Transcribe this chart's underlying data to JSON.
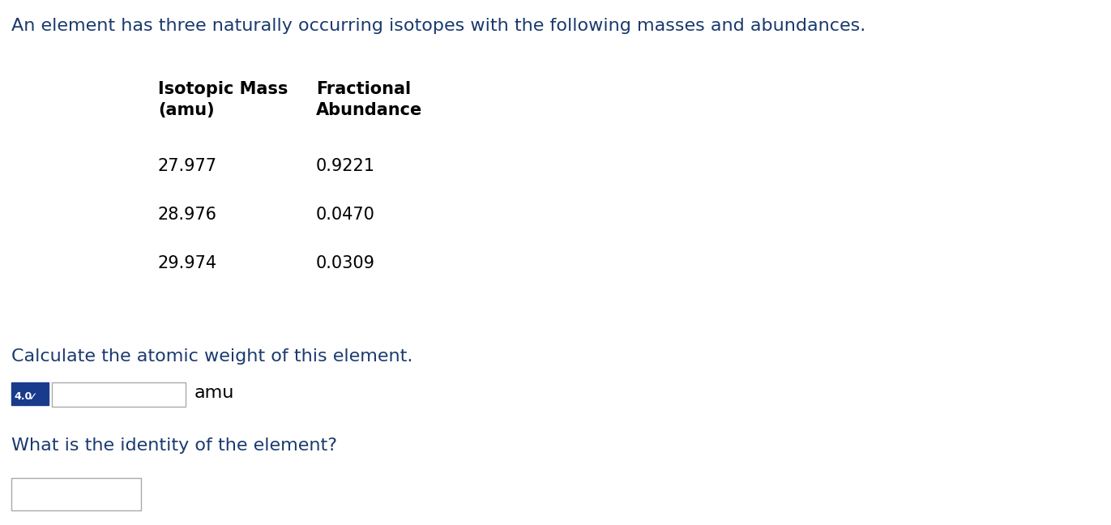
{
  "bg_color": "#ffffff",
  "title_text": "An element has three naturally occurring isotopes with the following masses and abundances.",
  "title_color": "#1a3a6e",
  "title_fontsize": 16,
  "col1_header_line1": "Isotopic Mass",
  "col1_header_line2": "(amu)",
  "col2_header_line1": "Fractional",
  "col2_header_line2": "Abundance",
  "header_color": "#000000",
  "header_fontsize": 15,
  "masses": [
    "27.977",
    "28.976",
    "29.974"
  ],
  "abundances": [
    "0.9221",
    "0.0470",
    "0.0309"
  ],
  "data_color": "#000000",
  "data_fontsize": 15,
  "calc_text": "Calculate the atomic weight of this element.",
  "calc_color": "#1a3a6e",
  "calc_fontsize": 16,
  "badge_text": "4.0",
  "badge_check": "✓",
  "badge_bg": "#1a3a8c",
  "amu_text": "amu",
  "amu_color": "#000000",
  "amu_fontsize": 16,
  "identity_text": "What is the identity of the element?",
  "identity_color": "#1a3a6e",
  "identity_fontsize": 16
}
